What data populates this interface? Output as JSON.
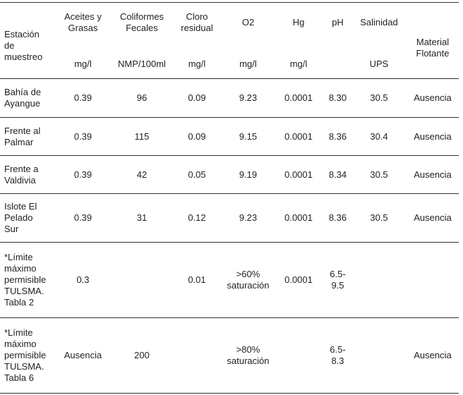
{
  "table": {
    "headers": [
      {
        "name": "Estación\nde\nmuestreo",
        "unit": ""
      },
      {
        "name": "Aceites y\nGrasas",
        "unit": "mg/l"
      },
      {
        "name": "Coliformes\nFecales",
        "unit": "NMP/100ml"
      },
      {
        "name": "Cloro\nresidual",
        "unit": "mg/l"
      },
      {
        "name": "O2",
        "unit": "mg/l"
      },
      {
        "name": "Hg",
        "unit": "mg/l"
      },
      {
        "name": "pH",
        "unit": ""
      },
      {
        "name": "Salinidad",
        "unit": "UPS"
      },
      {
        "name": "Material\nFlotante",
        "unit": ""
      }
    ],
    "rows": [
      [
        "Bahía de\nAyangue",
        "0.39",
        "96",
        "0.09",
        "9.23",
        "0.0001",
        "8.30",
        "30.5",
        "Ausencia"
      ],
      [
        "Frente al\nPalmar",
        "0.39",
        "115",
        "0.09",
        "9.15",
        "0.0001",
        "8.36",
        "30.4",
        "Ausencia"
      ],
      [
        "Frente a\nValdivia",
        "0.39",
        "42",
        "0.05",
        "9.19",
        "0.0001",
        "8.34",
        "30.5",
        "Ausencia"
      ],
      [
        "Islote El\nPelado\nSur",
        "0.39",
        "31",
        "0.12",
        "9.23",
        "0.0001",
        "8.36",
        "30.5",
        "Ausencia"
      ],
      [
        "*Límite\nmáximo\npermisible\nTULSMA.\nTabla 2",
        "0.3",
        "",
        "0.01",
        ">60%\nsaturación",
        "0.0001",
        "6.5-\n9.5",
        "",
        ""
      ],
      [
        "*Límite\nmáximo\npermisible\nTULSMA.\nTabla 6",
        "Ausencia",
        "200",
        "",
        ">80%\nsaturación",
        "",
        "6.5-\n8.3",
        "",
        "Ausencia"
      ]
    ]
  }
}
